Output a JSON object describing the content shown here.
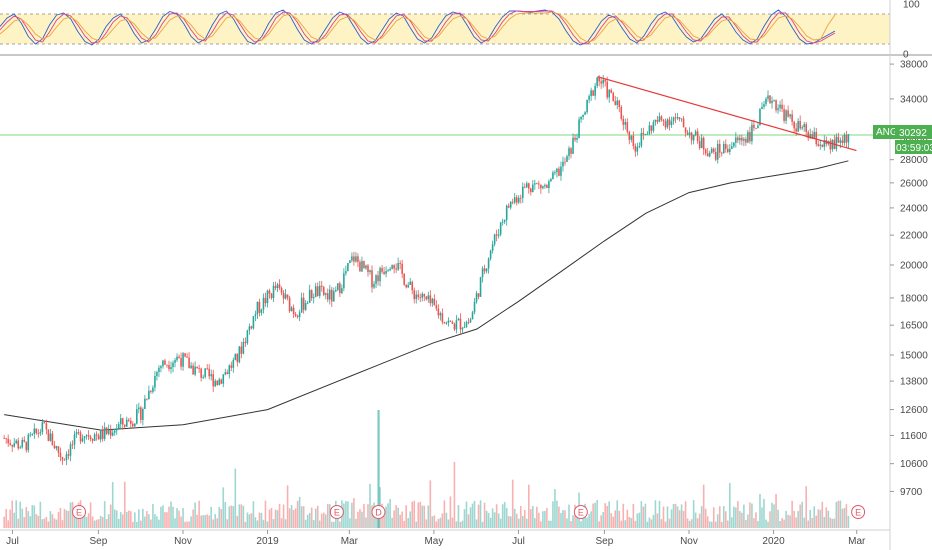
{
  "chart_data": [
    {
      "type": "line",
      "panel": "oscillator",
      "ylim": [
        0,
        100
      ],
      "y_ticks": [
        "100",
        "0"
      ],
      "levels": [
        80,
        20
      ],
      "series": [
        {
          "color": "#2c5fd4",
          "values": [
            55,
            72,
            80,
            62,
            35,
            20,
            30,
            58,
            78,
            82,
            70,
            45,
            25,
            18,
            30,
            55,
            72,
            80,
            65,
            40,
            22,
            28,
            50,
            75,
            85,
            80,
            60,
            35,
            22,
            30,
            58,
            80,
            86,
            70,
            45,
            25,
            20,
            35,
            62,
            82,
            88,
            76,
            50,
            28,
            20,
            28,
            50,
            72,
            84,
            78,
            55,
            32,
            20,
            26,
            48,
            70,
            82,
            76,
            52,
            30,
            22,
            32,
            56,
            76,
            84,
            80,
            58,
            34,
            22,
            30,
            54,
            74,
            86,
            86,
            85,
            84,
            86,
            88,
            84,
            70,
            46,
            26,
            18,
            24,
            44,
            66,
            78,
            72,
            50,
            30,
            22,
            36,
            60,
            78,
            84,
            74,
            52,
            34,
            24,
            30,
            50,
            70,
            80,
            66,
            44,
            28,
            20,
            30,
            56,
            78,
            88,
            76,
            52,
            30,
            20,
            22,
            30,
            38,
            46
          ]
        },
        {
          "color": "#e0408a",
          "values": [
            48,
            64,
            76,
            70,
            48,
            28,
            24,
            44,
            68,
            80,
            76,
            58,
            36,
            22,
            24,
            42,
            64,
            76,
            72,
            52,
            32,
            24,
            38,
            62,
            80,
            82,
            70,
            48,
            30,
            26,
            44,
            68,
            82,
            78,
            58,
            36,
            24,
            28,
            48,
            72,
            84,
            82,
            64,
            40,
            24,
            24,
            38,
            60,
            78,
            80,
            66,
            44,
            26,
            22,
            36,
            58,
            76,
            80,
            66,
            42,
            26,
            26,
            42,
            64,
            80,
            82,
            70,
            46,
            28,
            26,
            42,
            64,
            80,
            86,
            85,
            85,
            85,
            86,
            86,
            78,
            60,
            38,
            22,
            20,
            32,
            54,
            72,
            76,
            62,
            42,
            26,
            28,
            46,
            68,
            80,
            80,
            64,
            44,
            28,
            26,
            40,
            60,
            74,
            74,
            56,
            36,
            24,
            24,
            42,
            66,
            82,
            82,
            66,
            42,
            26,
            22,
            26,
            34,
            42
          ]
        },
        {
          "color": "#f0a040",
          "values": [
            40,
            52,
            66,
            70,
            58,
            40,
            30,
            36,
            54,
            70,
            74,
            64,
            46,
            32,
            26,
            34,
            50,
            66,
            70,
            60,
            42,
            30,
            32,
            50,
            68,
            76,
            72,
            58,
            40,
            30,
            36,
            54,
            72,
            76,
            64,
            46,
            32,
            28,
            40,
            60,
            76,
            80,
            70,
            52,
            34,
            28,
            32,
            50,
            68,
            74,
            68,
            52,
            36,
            28,
            32,
            48,
            66,
            74,
            68,
            52,
            34,
            28,
            36,
            54,
            70,
            76,
            70,
            54,
            36,
            30,
            36,
            54,
            70,
            80,
            82,
            82,
            82,
            82,
            84,
            80,
            68,
            50,
            32,
            24,
            28,
            44,
            62,
            70,
            66,
            52,
            36,
            30,
            38,
            56,
            72,
            76,
            68,
            52,
            36,
            30,
            36,
            52,
            66,
            70,
            60,
            44,
            30,
            28,
            36,
            54,
            72,
            76,
            70,
            54,
            36,
            28,
            30,
            58,
            78
          ]
        }
      ]
    },
    {
      "type": "candlestick",
      "panel": "price",
      "x_ticks": [
        "Jul",
        "Sep",
        "Nov",
        "2019",
        "Mar",
        "May",
        "Jul",
        "Sep",
        "Nov",
        "2020",
        "Mar"
      ],
      "y_ticks": [
        "38000",
        "34000",
        "30000",
        "28000",
        "26000",
        "24000",
        "22000",
        "20000",
        "18000",
        "16500",
        "15000",
        "13800",
        "12600",
        "11600",
        "10600",
        "9700"
      ],
      "scale": "log",
      "ylim": [
        9200,
        38500
      ],
      "colors": {
        "up": "#26a69a",
        "down": "#ef5350"
      },
      "last_price_line": {
        "value": 30292,
        "color": "#7ed87e"
      },
      "trendline": {
        "from": [
          "2019-08-27",
          36500
        ],
        "to": [
          "2020-02-24",
          29200
        ],
        "color": "#e83838"
      },
      "close_path": [
        {
          "d": "2018-06-25",
          "c": 11500
        },
        {
          "d": "2018-07-09",
          "c": 11200
        },
        {
          "d": "2018-07-23",
          "c": 11900
        },
        {
          "d": "2018-08-06",
          "c": 10800
        },
        {
          "d": "2018-08-20",
          "c": 11700
        },
        {
          "d": "2018-09-03",
          "c": 11600
        },
        {
          "d": "2018-09-17",
          "c": 12000
        },
        {
          "d": "2018-10-01",
          "c": 12400
        },
        {
          "d": "2018-10-15",
          "c": 14500
        },
        {
          "d": "2018-10-29",
          "c": 14900
        },
        {
          "d": "2018-11-12",
          "c": 14200
        },
        {
          "d": "2018-11-26",
          "c": 13800
        },
        {
          "d": "2018-12-10",
          "c": 14800
        },
        {
          "d": "2018-12-24",
          "c": 17300
        },
        {
          "d": "2019-01-07",
          "c": 18600
        },
        {
          "d": "2019-01-21",
          "c": 17200
        },
        {
          "d": "2019-02-04",
          "c": 18400
        },
        {
          "d": "2019-02-18",
          "c": 18000
        },
        {
          "d": "2019-03-04",
          "c": 20500
        },
        {
          "d": "2019-03-18",
          "c": 19000
        },
        {
          "d": "2019-04-01",
          "c": 20400
        },
        {
          "d": "2019-04-15",
          "c": 18400
        },
        {
          "d": "2019-04-29",
          "c": 17600
        },
        {
          "d": "2019-05-13",
          "c": 16500
        },
        {
          "d": "2019-05-27",
          "c": 16700
        },
        {
          "d": "2019-06-10",
          "c": 20800
        },
        {
          "d": "2019-06-24",
          "c": 24200
        },
        {
          "d": "2019-07-08",
          "c": 25900
        },
        {
          "d": "2019-07-22",
          "c": 25600
        },
        {
          "d": "2019-08-05",
          "c": 28000
        },
        {
          "d": "2019-08-19",
          "c": 33000
        },
        {
          "d": "2019-08-27",
          "c": 36400
        },
        {
          "d": "2019-09-09",
          "c": 33500
        },
        {
          "d": "2019-09-23",
          "c": 29200
        },
        {
          "d": "2019-10-07",
          "c": 31500
        },
        {
          "d": "2019-10-21",
          "c": 32000
        },
        {
          "d": "2019-11-04",
          "c": 30200
        },
        {
          "d": "2019-11-18",
          "c": 28500
        },
        {
          "d": "2019-12-02",
          "c": 29400
        },
        {
          "d": "2019-12-16",
          "c": 30500
        },
        {
          "d": "2019-12-30",
          "c": 34200
        },
        {
          "d": "2020-01-13",
          "c": 31700
        },
        {
          "d": "2020-01-27",
          "c": 30200
        },
        {
          "d": "2020-02-10",
          "c": 29000
        },
        {
          "d": "2020-02-24",
          "c": 30292
        }
      ],
      "moving_average": [
        {
          "d": "2018-06-25",
          "v": 12400
        },
        {
          "d": "2018-09-03",
          "v": 11800
        },
        {
          "d": "2018-11-01",
          "v": 12000
        },
        {
          "d": "2019-01-01",
          "v": 12600
        },
        {
          "d": "2019-03-01",
          "v": 14000
        },
        {
          "d": "2019-05-01",
          "v": 15600
        },
        {
          "d": "2019-06-01",
          "v": 16300
        },
        {
          "d": "2019-07-01",
          "v": 17800
        },
        {
          "d": "2019-08-01",
          "v": 19600
        },
        {
          "d": "2019-09-01",
          "v": 21600
        },
        {
          "d": "2019-10-01",
          "v": 23600
        },
        {
          "d": "2019-11-01",
          "v": 25200
        },
        {
          "d": "2019-12-01",
          "v": 26000
        },
        {
          "d": "2020-01-01",
          "v": 26600
        },
        {
          "d": "2020-02-01",
          "v": 27200
        },
        {
          "d": "2020-02-24",
          "v": 27900
        }
      ],
      "events": [
        {
          "d": "2018-08-18",
          "label": "E"
        },
        {
          "d": "2019-02-20",
          "label": "E"
        },
        {
          "d": "2019-03-22",
          "label": "D"
        },
        {
          "d": "2019-08-15",
          "label": "E"
        },
        {
          "d": "2020-03-02",
          "label": "E"
        }
      ]
    }
  ],
  "price_tag": {
    "symbol": "ANG",
    "value": "30292",
    "countdown": "03:59:03"
  }
}
